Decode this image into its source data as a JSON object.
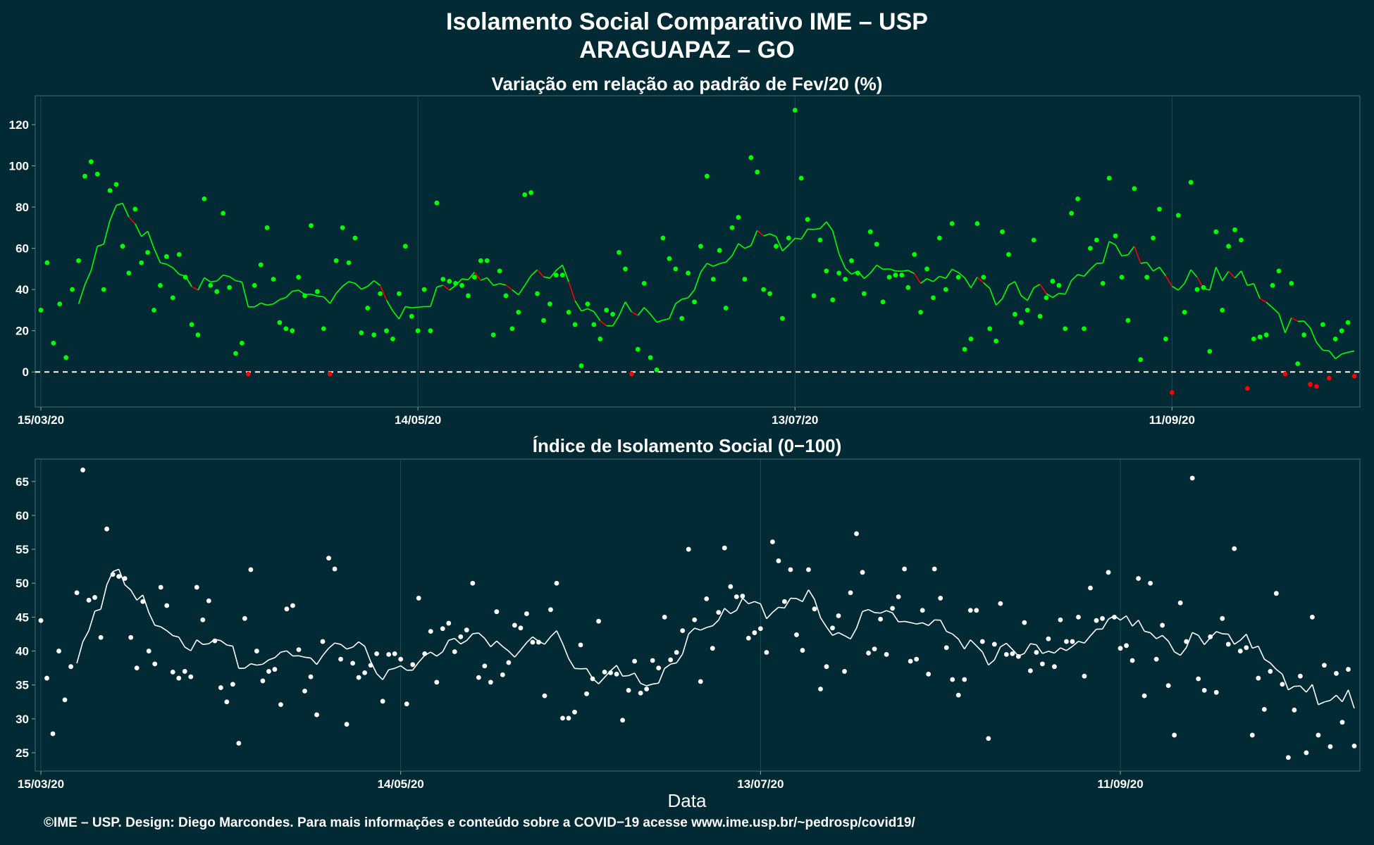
{
  "header": {
    "title_line1": "Isolamento Social Comparativo IME – USP",
    "title_line2": "ARAGUAPAZ – GO"
  },
  "footer": {
    "xlabel": "Data",
    "credit": "©IME – USP. Design: Diego Marcondes. Para mais informações e conteúdo sobre a COVID−19 acesse www.ime.usp.br/~pedrosp/covid19/"
  },
  "colors": {
    "background": "#012a35",
    "green": "#00ff00",
    "red": "#ff0000",
    "white": "#ffffff"
  },
  "chart_data": [
    {
      "type": "scatter",
      "title": "Variação em relação ao padrão de Fev/20 (%)",
      "xlabel": "",
      "ylabel": "",
      "x_start": "15/03/20",
      "x_tick_labels": [
        "15/03/20",
        "14/05/20",
        "13/07/20",
        "11/09/20"
      ],
      "y_ticks": [
        0,
        20,
        40,
        60,
        80,
        100,
        120
      ],
      "ylim": [
        -17,
        134
      ],
      "reference_line": 0,
      "grid": true,
      "series": [
        {
          "values": [
            30,
            53,
            14,
            33,
            7,
            40,
            54,
            95,
            102,
            96,
            40,
            88,
            91,
            61,
            48,
            79,
            53,
            58,
            30,
            42,
            56,
            36,
            57,
            46,
            23,
            18,
            84,
            42,
            39,
            77,
            41,
            9,
            14,
            -1,
            42,
            52,
            70,
            45,
            24,
            21,
            20,
            46,
            37,
            71,
            39,
            21,
            -1,
            54,
            70,
            53,
            65,
            19,
            31,
            18,
            38,
            20,
            16,
            38,
            61,
            27,
            20,
            40,
            20,
            82,
            45,
            44,
            43,
            42,
            37,
            46,
            54,
            54,
            18,
            49,
            37,
            21,
            29,
            86,
            87,
            38,
            25,
            33,
            47,
            47,
            29,
            23,
            3,
            33,
            23,
            16,
            30,
            28,
            58,
            50,
            -1,
            11,
            43,
            7,
            1,
            65,
            55,
            50,
            26,
            48,
            34,
            61,
            95,
            45,
            59,
            31,
            70,
            75,
            45,
            104,
            97,
            40,
            38,
            61,
            26,
            65,
            127,
            94,
            74,
            37,
            64,
            49,
            35,
            48,
            45,
            54,
            48,
            38,
            68,
            62,
            34,
            46,
            47,
            47,
            41,
            57,
            29,
            50,
            36,
            65,
            40,
            72,
            46,
            11,
            16,
            72,
            46,
            21,
            15,
            68,
            57,
            28,
            24,
            30,
            64,
            27,
            36,
            44,
            42,
            21,
            77,
            84,
            21,
            60,
            64,
            43,
            94,
            66,
            46,
            25,
            89,
            6,
            46,
            65,
            79,
            16,
            -10,
            76,
            29,
            92,
            40,
            41,
            10,
            68,
            30,
            61,
            69,
            64,
            -8,
            16,
            17,
            18,
            42,
            49,
            -1,
            43,
            4,
            18,
            -6,
            -7,
            23,
            -3,
            16,
            20,
            24,
            -2
          ]
        }
      ]
    },
    {
      "type": "scatter",
      "title": "Índice de Isolamento Social (0−100)",
      "xlabel": "Data",
      "ylabel": "",
      "x_start": "15/03/20",
      "x_tick_labels": [
        "15/03/20",
        "14/05/20",
        "13/07/20",
        "11/09/20"
      ],
      "y_ticks": [
        25,
        30,
        35,
        40,
        45,
        50,
        55,
        60,
        65
      ],
      "ylim": [
        22.3,
        68.3
      ],
      "grid": true,
      "series": [
        {
          "values": [
            44.5,
            36,
            27.8,
            40,
            32.8,
            37.7,
            48.6,
            66.7,
            47.5,
            47.9,
            42,
            58,
            51.3,
            51,
            50.7,
            42,
            37.5,
            47.3,
            40,
            38.1,
            49.4,
            46.7,
            36.9,
            36,
            37,
            36.2,
            49.4,
            44.6,
            47.4,
            41.5,
            34.6,
            32.5,
            35.1,
            26.4,
            44.8,
            52,
            40,
            35.6,
            37,
            37.3,
            32.1,
            46.2,
            46.7,
            40.2,
            34.1,
            36.2,
            30.6,
            41.4,
            53.7,
            52.1,
            38.8,
            29.2,
            38.2,
            36.1,
            36.8,
            37.9,
            39.6,
            32.6,
            39.5,
            39.6,
            38.8,
            32.2,
            38,
            47.8,
            39.6,
            42.9,
            35.4,
            43.3,
            44.1,
            39.9,
            42.1,
            43.1,
            50,
            36.1,
            37.8,
            35.4,
            45.8,
            36.5,
            38.3,
            43.8,
            43.4,
            45.5,
            41.3,
            41.3,
            33.4,
            46.1,
            50,
            30.1,
            30.1,
            31,
            40.9,
            33.7,
            35.9,
            44.4,
            36.9,
            36.8,
            36.6,
            29.8,
            34.2,
            38.5,
            33.8,
            34.4,
            38.6,
            37.5,
            45,
            38.7,
            39.8,
            43,
            55,
            44.6,
            35.5,
            47.7,
            40.4,
            45.7,
            55.2,
            49.5,
            48,
            48.1,
            41.9,
            42.7,
            43.3,
            39.8,
            56.1,
            53.3,
            47.3,
            52,
            42.4,
            40.1,
            52,
            46.2,
            34.4,
            37.7,
            43.4,
            45.2,
            37,
            48.6,
            57.3,
            51.6,
            39.7,
            40.3,
            44.7,
            39.5,
            46.3,
            48,
            52.1,
            38.5,
            38.8,
            46,
            36.6,
            52.1,
            47.8,
            40.5,
            35.8,
            33.5,
            35.8,
            46,
            46,
            41.4,
            27.1,
            41,
            47,
            39.5,
            39.6,
            39.2,
            44.2,
            37.1,
            39.8,
            38.1,
            41.8,
            37.7,
            44.6,
            41.4,
            41.4,
            45,
            36.3,
            49.3,
            44.5,
            44.8,
            51.6,
            45,
            40.4,
            40.8,
            38.6,
            50.7,
            33.4,
            50,
            38.8,
            43.8,
            34.9,
            27.6,
            47.1,
            41.4,
            65.5,
            35.9,
            34.2,
            42.1,
            33.9,
            44.8,
            41,
            55.1,
            40,
            40.5,
            27.6,
            36,
            31.4,
            37,
            48.5,
            35.1,
            24.3,
            31.3,
            36.3,
            25,
            45,
            27.6,
            37.9,
            25.9,
            36.7,
            29.5,
            37.3,
            26
          ]
        }
      ]
    }
  ]
}
